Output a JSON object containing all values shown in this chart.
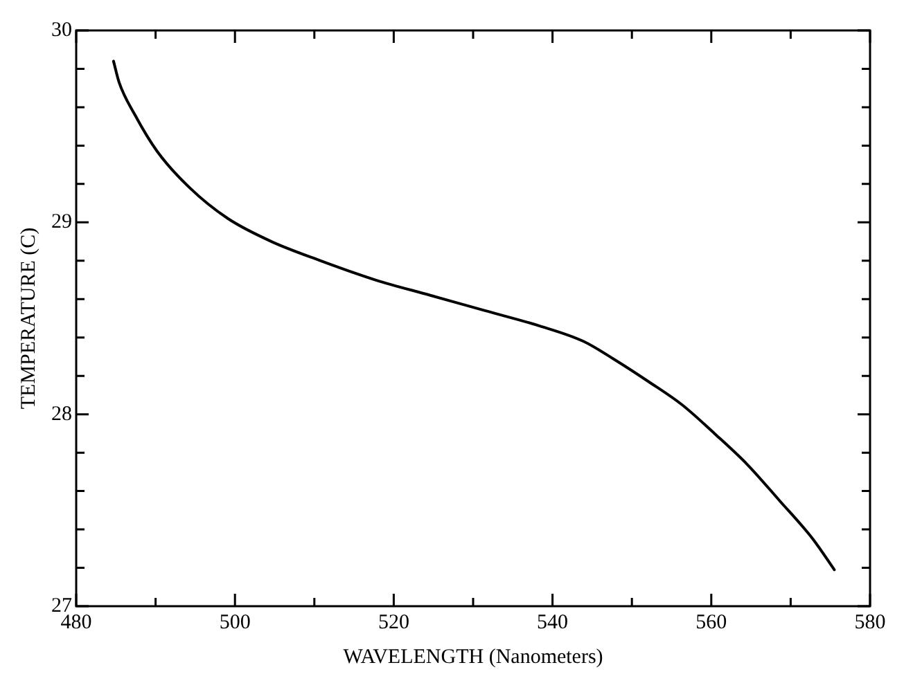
{
  "chart_data": {
    "type": "line",
    "xlabel": "WAVELENGTH (Nanometers)",
    "ylabel": "TEMPERATURE (C)",
    "xlim": [
      480,
      580
    ],
    "ylim": [
      27,
      30
    ],
    "xticks": [
      480,
      {
        "value": 490,
        "label": null
      },
      500,
      {
        "value": 510,
        "label": null
      },
      520,
      {
        "value": 530,
        "label": null
      },
      540,
      {
        "value": 550,
        "label": null
      },
      560,
      {
        "value": 570,
        "label": null
      },
      580
    ],
    "yticks": [
      27,
      {
        "value": 27.2,
        "label": null
      },
      {
        "value": 27.4,
        "label": null
      },
      {
        "value": 27.6,
        "label": null
      },
      {
        "value": 27.8,
        "label": null
      },
      28,
      {
        "value": 28.2,
        "label": null
      },
      {
        "value": 28.4,
        "label": null
      },
      {
        "value": 28.6,
        "label": null
      },
      {
        "value": 28.8,
        "label": null
      },
      29,
      {
        "value": 29.2,
        "label": null
      },
      {
        "value": 29.4,
        "label": null
      },
      {
        "value": 29.6,
        "label": null
      },
      {
        "value": 29.8,
        "label": null
      },
      30
    ],
    "grid": false,
    "marker": "none",
    "line_style": "solid",
    "series": [
      {
        "color": "#000000",
        "x": [
          484.7,
          485.4,
          487.4,
          490.2,
          494.3,
          499.1,
          504.6,
          510.8,
          517.7,
          524.6,
          531.5,
          538.4,
          543.9,
          548.0,
          552.1,
          556.3,
          560.4,
          564.5,
          568.6,
          572.8,
          575.5
        ],
        "values": [
          29.84,
          29.73,
          29.56,
          29.37,
          29.18,
          29.02,
          28.9,
          28.8,
          28.7,
          28.62,
          28.54,
          28.46,
          28.38,
          28.28,
          28.17,
          28.05,
          27.9,
          27.74,
          27.55,
          27.35,
          27.19
        ]
      }
    ]
  }
}
